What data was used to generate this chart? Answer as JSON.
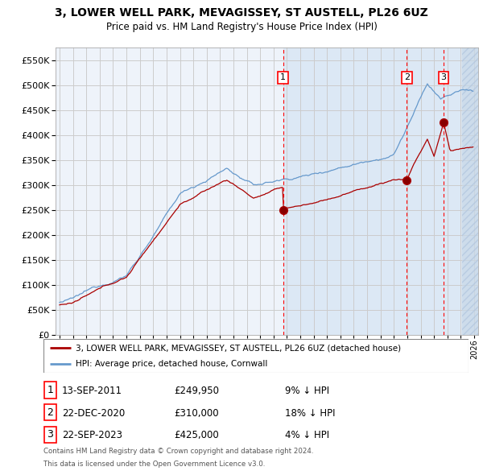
{
  "title1": "3, LOWER WELL PARK, MEVAGISSEY, ST AUSTELL, PL26 6UZ",
  "title2": "Price paid vs. HM Land Registry's House Price Index (HPI)",
  "ylim": [
    0,
    575000
  ],
  "yticks": [
    0,
    50000,
    100000,
    150000,
    200000,
    250000,
    300000,
    350000,
    400000,
    450000,
    500000,
    550000
  ],
  "xlim_start": 1994.7,
  "xlim_end": 2026.3,
  "sale_dates": [
    2011.71,
    2020.97,
    2023.72
  ],
  "sale_prices": [
    249950,
    310000,
    425000
  ],
  "sale_labels": [
    "1",
    "2",
    "3"
  ],
  "sale_info": [
    {
      "label": "1",
      "date": "13-SEP-2011",
      "price": "£249,950",
      "note": "9% ↓ HPI"
    },
    {
      "label": "2",
      "date": "22-DEC-2020",
      "price": "£310,000",
      "note": "18% ↓ HPI"
    },
    {
      "label": "3",
      "date": "22-SEP-2023",
      "price": "£425,000",
      "note": "4% ↓ HPI"
    }
  ],
  "legend_entries": [
    "3, LOWER WELL PARK, MEVAGISSEY, ST AUSTELL, PL26 6UZ (detached house)",
    "HPI: Average price, detached house, Cornwall"
  ],
  "footnote1": "Contains HM Land Registry data © Crown copyright and database right 2024.",
  "footnote2": "This data is licensed under the Open Government Licence v3.0.",
  "red_line_color": "#aa0000",
  "blue_line_color": "#6699cc",
  "grid_color": "#cccccc",
  "bg_color": "#eef3fa",
  "highlight_color": "#dce8f5",
  "hatch_color": "#c8d8e8"
}
